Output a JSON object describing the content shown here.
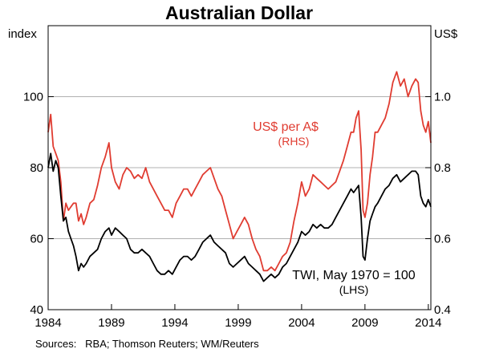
{
  "chart_data": {
    "type": "line",
    "title": "Australian Dollar",
    "left_axis": {
      "unit": "index",
      "ylim": [
        40,
        120
      ],
      "ticks": [
        40,
        60,
        80,
        100
      ]
    },
    "right_axis": {
      "unit": "US$",
      "ylim": [
        0.4,
        1.2
      ],
      "ticks": [
        0.4,
        0.6,
        0.8,
        1.0
      ],
      "tick_labels": [
        "0.4",
        "0.6",
        "0.8",
        "1.0"
      ]
    },
    "x_axis": {
      "xlim": [
        1984.0,
        2014.2
      ],
      "ticks": [
        1984,
        1989,
        1994,
        1999,
        2004,
        2009,
        2014
      ]
    },
    "grid": true,
    "colors": {
      "usd": "#e03c31",
      "twi": "#000000"
    },
    "series": [
      {
        "name": "US$ per A$",
        "axis": "right",
        "label_line1": "US$ per A$",
        "label_line2": "(RHS)",
        "x": [
          1984.0,
          1984.2,
          1984.4,
          1984.6,
          1984.8,
          1985.0,
          1985.2,
          1985.4,
          1985.6,
          1985.8,
          1986.0,
          1986.2,
          1986.4,
          1986.6,
          1986.8,
          1987.0,
          1987.3,
          1987.6,
          1987.9,
          1988.2,
          1988.5,
          1988.8,
          1989.0,
          1989.3,
          1989.6,
          1989.9,
          1990.2,
          1990.5,
          1990.8,
          1991.1,
          1991.4,
          1991.7,
          1992.0,
          1992.3,
          1992.6,
          1992.9,
          1993.2,
          1993.5,
          1993.8,
          1994.1,
          1994.4,
          1994.7,
          1995.0,
          1995.3,
          1995.6,
          1995.9,
          1996.2,
          1996.5,
          1996.8,
          1997.1,
          1997.4,
          1997.7,
          1998.0,
          1998.3,
          1998.6,
          1998.9,
          1999.2,
          1999.5,
          1999.8,
          2000.1,
          2000.4,
          2000.7,
          2001.0,
          2001.3,
          2001.6,
          2001.9,
          2002.2,
          2002.5,
          2002.8,
          2003.1,
          2003.4,
          2003.7,
          2004.0,
          2004.3,
          2004.6,
          2004.9,
          2005.2,
          2005.5,
          2005.8,
          2006.1,
          2006.4,
          2006.7,
          2007.0,
          2007.3,
          2007.6,
          2007.9,
          2008.1,
          2008.3,
          2008.5,
          2008.7,
          2008.85,
          2009.0,
          2009.2,
          2009.4,
          2009.6,
          2009.8,
          2010.0,
          2010.3,
          2010.6,
          2010.9,
          2011.2,
          2011.5,
          2011.8,
          2012.1,
          2012.4,
          2012.7,
          2013.0,
          2013.2,
          2013.4,
          2013.6,
          2013.8,
          2014.0,
          2014.2
        ],
        "values": [
          0.9,
          0.95,
          0.86,
          0.84,
          0.82,
          0.76,
          0.65,
          0.7,
          0.68,
          0.69,
          0.7,
          0.7,
          0.65,
          0.67,
          0.64,
          0.66,
          0.7,
          0.71,
          0.75,
          0.8,
          0.83,
          0.87,
          0.8,
          0.76,
          0.74,
          0.78,
          0.8,
          0.79,
          0.77,
          0.78,
          0.77,
          0.8,
          0.76,
          0.74,
          0.72,
          0.7,
          0.68,
          0.68,
          0.66,
          0.7,
          0.72,
          0.74,
          0.74,
          0.72,
          0.74,
          0.76,
          0.78,
          0.79,
          0.8,
          0.77,
          0.74,
          0.72,
          0.68,
          0.64,
          0.6,
          0.62,
          0.64,
          0.66,
          0.64,
          0.6,
          0.57,
          0.55,
          0.51,
          0.51,
          0.52,
          0.51,
          0.53,
          0.55,
          0.56,
          0.59,
          0.65,
          0.7,
          0.76,
          0.72,
          0.74,
          0.78,
          0.77,
          0.76,
          0.75,
          0.74,
          0.75,
          0.76,
          0.79,
          0.82,
          0.86,
          0.9,
          0.9,
          0.94,
          0.96,
          0.85,
          0.68,
          0.66,
          0.7,
          0.78,
          0.83,
          0.9,
          0.9,
          0.92,
          0.94,
          0.98,
          1.04,
          1.07,
          1.03,
          1.05,
          1.0,
          1.03,
          1.05,
          1.04,
          0.96,
          0.92,
          0.9,
          0.93,
          0.87
        ]
      },
      {
        "name": "TWI, May 1970 = 100",
        "axis": "left",
        "label_line1": "TWI, May 1970 = 100",
        "label_line2": "(LHS)",
        "x": [
          1984.0,
          1984.2,
          1984.4,
          1984.6,
          1984.8,
          1985.0,
          1985.2,
          1985.4,
          1985.6,
          1985.8,
          1986.0,
          1986.2,
          1986.4,
          1986.6,
          1986.8,
          1987.0,
          1987.3,
          1987.6,
          1987.9,
          1988.2,
          1988.5,
          1988.8,
          1989.0,
          1989.3,
          1989.6,
          1989.9,
          1990.2,
          1990.5,
          1990.8,
          1991.1,
          1991.4,
          1991.7,
          1992.0,
          1992.3,
          1992.6,
          1992.9,
          1993.2,
          1993.5,
          1993.8,
          1994.1,
          1994.4,
          1994.7,
          1995.0,
          1995.3,
          1995.6,
          1995.9,
          1996.2,
          1996.5,
          1996.8,
          1997.1,
          1997.4,
          1997.7,
          1998.0,
          1998.3,
          1998.6,
          1998.9,
          1999.2,
          1999.5,
          1999.8,
          2000.1,
          2000.4,
          2000.7,
          2001.0,
          2001.3,
          2001.6,
          2001.9,
          2002.2,
          2002.5,
          2002.8,
          2003.1,
          2003.4,
          2003.7,
          2004.0,
          2004.3,
          2004.6,
          2004.9,
          2005.2,
          2005.5,
          2005.8,
          2006.1,
          2006.4,
          2006.7,
          2007.0,
          2007.3,
          2007.6,
          2007.9,
          2008.1,
          2008.3,
          2008.5,
          2008.7,
          2008.85,
          2009.0,
          2009.2,
          2009.4,
          2009.6,
          2009.8,
          2010.0,
          2010.3,
          2010.6,
          2010.9,
          2011.2,
          2011.5,
          2011.8,
          2012.1,
          2012.4,
          2012.7,
          2013.0,
          2013.2,
          2013.4,
          2013.6,
          2013.8,
          2014.0,
          2014.2
        ],
        "values": [
          80,
          84,
          79,
          82,
          80,
          72,
          65,
          66,
          62,
          60,
          58,
          55,
          51,
          53,
          52,
          53,
          55,
          56,
          57,
          60,
          62,
          63,
          61,
          63,
          62,
          61,
          60,
          57,
          56,
          56,
          57,
          56,
          55,
          53,
          51,
          50,
          50,
          51,
          50,
          52,
          54,
          55,
          55,
          54,
          55,
          57,
          59,
          60,
          61,
          59,
          58,
          57,
          56,
          53,
          52,
          53,
          54,
          55,
          53,
          52,
          51,
          50,
          48,
          49,
          50,
          49,
          50,
          52,
          53,
          55,
          57,
          59,
          62,
          61,
          62,
          64,
          63,
          64,
          63,
          63,
          64,
          66,
          68,
          70,
          72,
          74,
          73,
          74,
          75,
          66,
          55,
          54,
          60,
          65,
          67,
          69,
          70,
          72,
          74,
          75,
          77,
          78,
          76,
          77,
          78,
          79,
          79,
          78,
          72,
          70,
          69,
          71,
          69
        ]
      }
    ],
    "source": "Sources:   RBA; Thomson Reuters; WM/Reuters"
  }
}
